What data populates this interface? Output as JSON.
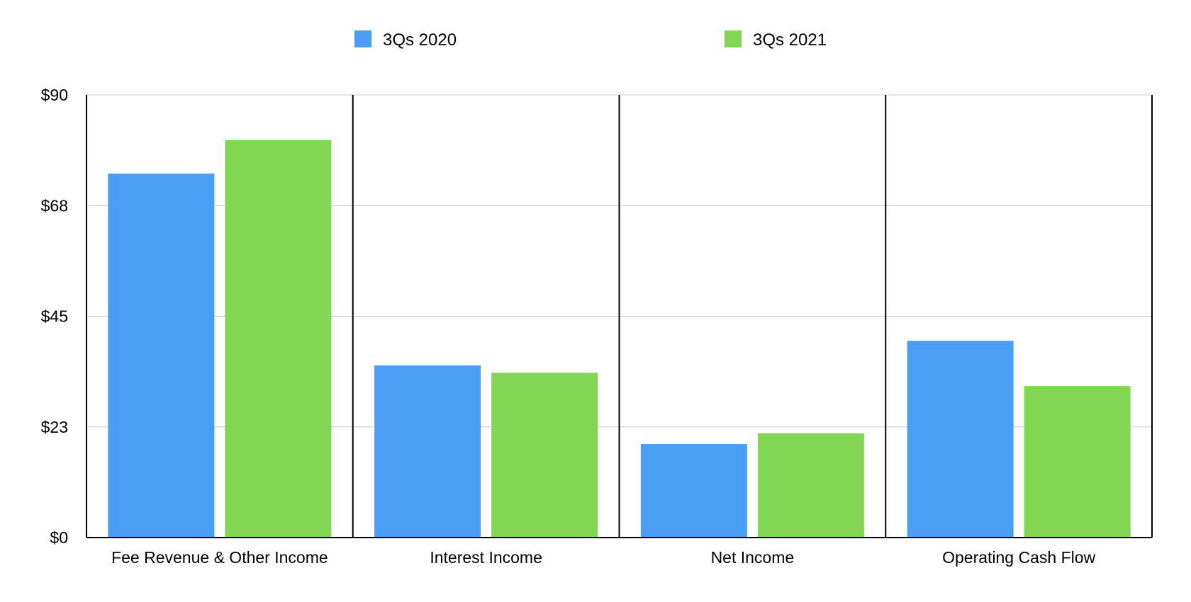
{
  "chart_data": {
    "type": "bar",
    "title": "",
    "xlabel": "",
    "ylabel": "",
    "categories": [
      "Fee Revenue & Other Income",
      "Interest Income",
      "Net Income",
      "Operating Cash Flow"
    ],
    "series": [
      {
        "name": "3Qs 2020",
        "color": "#4A9FF5",
        "values": [
          74,
          35,
          19,
          40
        ]
      },
      {
        "name": "3Qs 2021",
        "color": "#82D653",
        "values": [
          80.8,
          33.5,
          21.2,
          30.8
        ]
      }
    ],
    "ylim": [
      0,
      90
    ],
    "yticks": [
      {
        "value": 0,
        "label": "$0"
      },
      {
        "value": 22.5,
        "label": "$23"
      },
      {
        "value": 45,
        "label": "$45"
      },
      {
        "value": 67.5,
        "label": "$68"
      },
      {
        "value": 90,
        "label": "$90"
      }
    ],
    "grid": true,
    "legend_position": "top-center"
  }
}
